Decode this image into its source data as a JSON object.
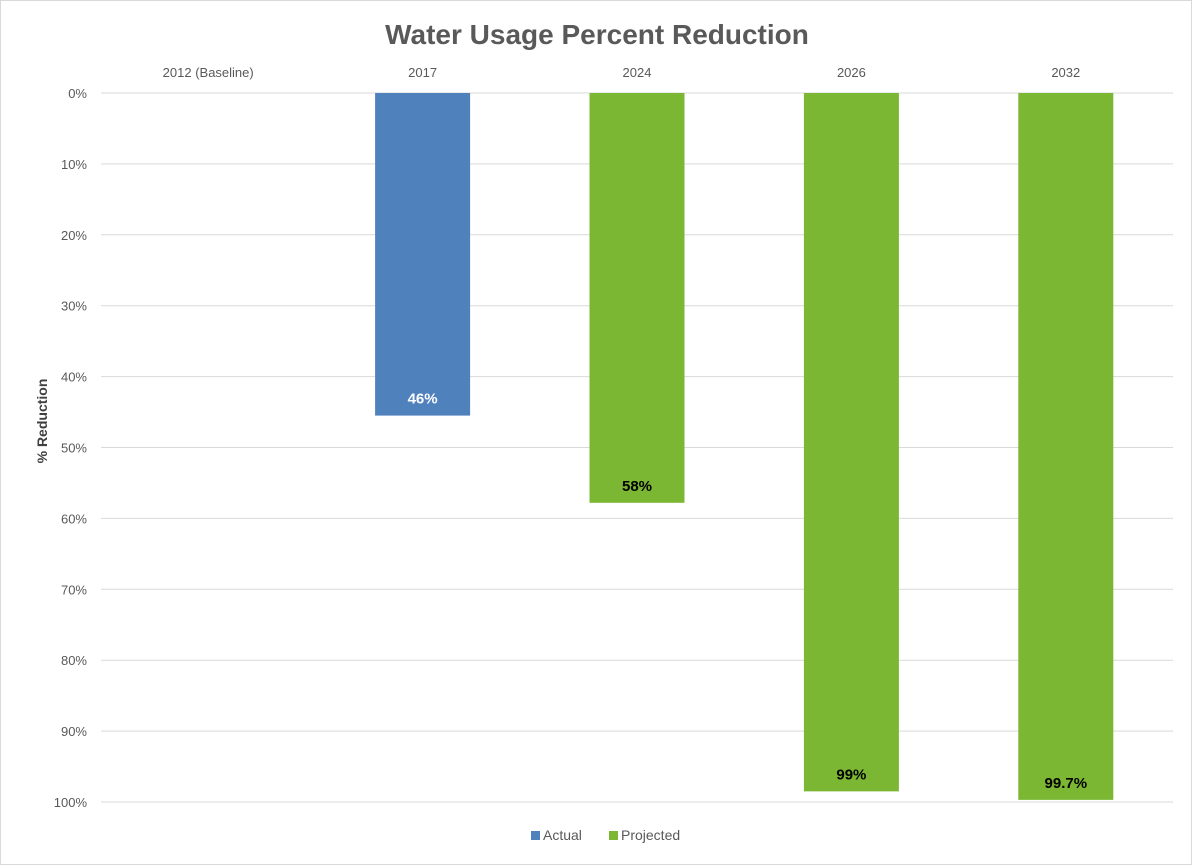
{
  "chart_data": {
    "type": "bar",
    "orientation": "vertical-inverted",
    "title": "Water Usage Percent Reduction",
    "ylabel": "% Reduction",
    "xlabel": "",
    "categories": [
      "2012 (Baseline)",
      "2017",
      "2024",
      "2026",
      "2032"
    ],
    "ylim": [
      0,
      100
    ],
    "y_ticks": [
      0,
      10,
      20,
      30,
      40,
      50,
      60,
      70,
      80,
      90,
      100
    ],
    "y_tick_labels": [
      "0%",
      "10%",
      "20%",
      "30%",
      "40%",
      "50%",
      "60%",
      "70%",
      "80%",
      "90%",
      "100%"
    ],
    "y_inverted": true,
    "grid": "horizontal",
    "x_axis_position": "top",
    "legend_position": "bottom",
    "series": [
      {
        "name": "Actual",
        "color": "#4f81bd",
        "label_color": "#ffffff",
        "values": [
          null,
          45.5,
          null,
          null,
          null
        ],
        "labels": [
          null,
          "46%",
          null,
          null,
          null
        ]
      },
      {
        "name": "Projected",
        "color": "#7cb733",
        "label_color": "#000000",
        "values": [
          null,
          null,
          57.8,
          98.5,
          99.7
        ],
        "labels": [
          null,
          null,
          "58%",
          "99%",
          "99.7%"
        ]
      }
    ]
  }
}
